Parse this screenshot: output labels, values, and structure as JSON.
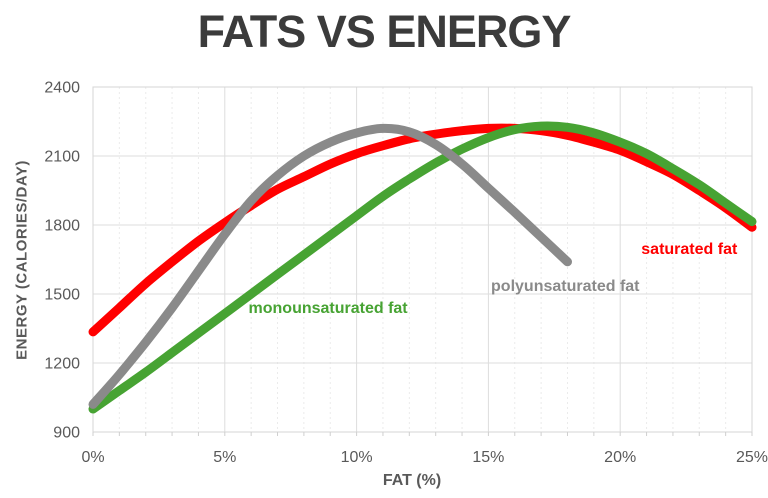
{
  "title": "FATS VS ENERGY",
  "colors": {
    "saturated": "#FF0000",
    "monounsaturated": "#47A333",
    "polyunsaturated": "#8A8A8A",
    "title_text": "#3B3B3B",
    "axis_text": "#595959",
    "major_gridline": "#DDDDDD",
    "minor_gridline": "#EBEBEB",
    "plot_border": "#D5D5D5",
    "tick_mark": "#CFCFCF"
  },
  "chart_data": {
    "type": "line",
    "title": "FATS VS ENERGY",
    "xlabel": "FAT (%)",
    "ylabel": "ENERGY (CALORIES/DAY)",
    "xlim": [
      0,
      25
    ],
    "ylim": [
      900,
      2400
    ],
    "x_ticks": [
      0,
      5,
      10,
      15,
      20,
      25
    ],
    "x_tick_labels": [
      "0%",
      "5%",
      "10%",
      "15%",
      "20%",
      "25%"
    ],
    "x_minor_step": 1,
    "y_ticks": [
      900,
      1200,
      1500,
      1800,
      2100,
      2400
    ],
    "y_tick_labels": [
      "900",
      "1200",
      "1500",
      "1800",
      "2100",
      "2400"
    ],
    "grid": "on",
    "legend_position": "inline-annotations",
    "line_width": 9,
    "series": [
      {
        "name": "saturated fat",
        "color_key": "saturated",
        "x_start": 0,
        "x_step": 1,
        "values": [
          1335,
          1440,
          1545,
          1640,
          1730,
          1810,
          1885,
          1955,
          2010,
          2065,
          2110,
          2145,
          2175,
          2195,
          2210,
          2220,
          2220,
          2210,
          2190,
          2160,
          2125,
          2075,
          2020,
          1950,
          1875,
          1790
        ],
        "label": {
          "text": "saturated fat",
          "x": 20.8,
          "y": 1690
        }
      },
      {
        "name": "monounsaturated fat",
        "color_key": "monounsaturated",
        "x_start": 0,
        "x_step": 1,
        "values": [
          1000,
          1080,
          1160,
          1245,
          1330,
          1415,
          1500,
          1585,
          1670,
          1755,
          1840,
          1925,
          2000,
          2070,
          2130,
          2180,
          2215,
          2230,
          2225,
          2200,
          2160,
          2110,
          2045,
          1975,
          1895,
          1815
        ],
        "label": {
          "text": "monounsaturated fat",
          "x": 5.9,
          "y": 1435
        }
      },
      {
        "name": "polyunsaturated fat",
        "color_key": "polyunsaturated",
        "x_start": 0,
        "x_step": 1,
        "values": [
          1020,
          1150,
          1290,
          1440,
          1600,
          1760,
          1905,
          2015,
          2100,
          2160,
          2200,
          2220,
          2205,
          2150,
          2065,
          1960,
          1855,
          1748,
          1640
        ],
        "label": {
          "text": "polyunsaturated fat",
          "x": 15.1,
          "y": 1530
        }
      }
    ]
  }
}
